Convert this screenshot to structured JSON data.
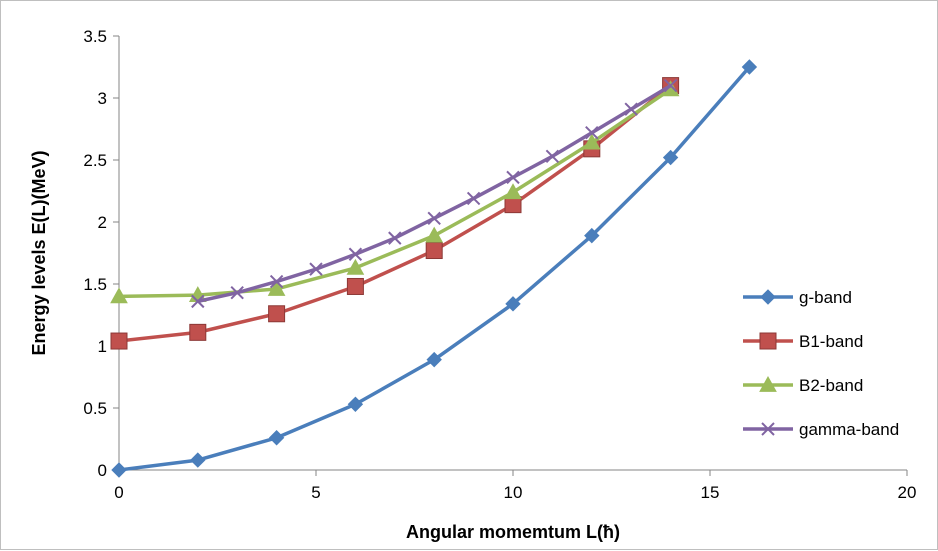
{
  "chart_data": {
    "type": "line",
    "xlabel": "Angular momemtum   L(ħ)",
    "ylabel": "Energy levels E(L)(MeV)",
    "xlim": [
      0,
      20
    ],
    "ylim": [
      0,
      3.5
    ],
    "xticks": [
      0,
      5,
      10,
      15,
      20
    ],
    "yticks": [
      0,
      0.5,
      1,
      1.5,
      2,
      2.5,
      3,
      3.5
    ],
    "ytick_labels": [
      "0",
      "0.5",
      "1",
      "1.5",
      "2",
      "2.5",
      "3",
      "3.5"
    ],
    "grid": false,
    "legend_position": "right",
    "series": [
      {
        "name": "g-band",
        "color": "#4a7ebb",
        "marker": "diamond",
        "x": [
          0,
          2,
          4,
          6,
          8,
          10,
          12,
          14,
          16
        ],
        "y": [
          0,
          0.08,
          0.26,
          0.53,
          0.89,
          1.34,
          1.89,
          2.52,
          3.25
        ]
      },
      {
        "name": "B1-band",
        "color": "#c0504d",
        "marker": "square",
        "x": [
          0,
          2,
          4,
          6,
          8,
          10,
          12,
          14
        ],
        "y": [
          1.04,
          1.11,
          1.26,
          1.48,
          1.77,
          2.14,
          2.59,
          3.1
        ]
      },
      {
        "name": "B2-band",
        "color": "#9bbb59",
        "marker": "triangle",
        "x": [
          0,
          2,
          4,
          6,
          8,
          10,
          12,
          14
        ],
        "y": [
          1.4,
          1.41,
          1.46,
          1.63,
          1.89,
          2.24,
          2.64,
          3.07
        ]
      },
      {
        "name": "gamma-band",
        "color": "#8064a2",
        "marker": "x",
        "x": [
          2,
          3,
          4,
          5,
          6,
          7,
          8,
          9,
          10,
          11,
          12,
          13,
          14
        ],
        "y": [
          1.36,
          1.43,
          1.52,
          1.62,
          1.74,
          1.87,
          2.03,
          2.19,
          2.36,
          2.53,
          2.72,
          2.91,
          3.1
        ]
      }
    ]
  }
}
